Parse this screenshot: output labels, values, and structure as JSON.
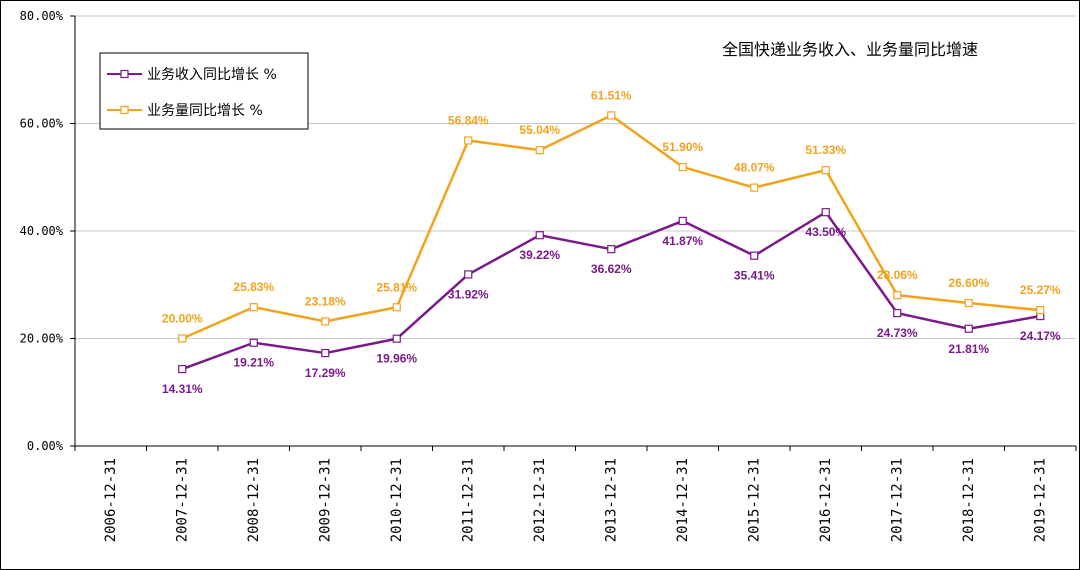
{
  "chart_data": {
    "type": "line",
    "title": "全国快递业务收入、业务量同比增速",
    "categories": [
      "2006-12-31",
      "2007-12-31",
      "2008-12-31",
      "2009-12-31",
      "2010-12-31",
      "2011-12-31",
      "2012-12-31",
      "2013-12-31",
      "2014-12-31",
      "2015-12-31",
      "2016-12-31",
      "2017-12-31",
      "2018-12-31",
      "2019-12-31"
    ],
    "ylim": [
      0,
      80
    ],
    "yticks": [
      0,
      20,
      40,
      60,
      80
    ],
    "ytick_labels": [
      "0.00%",
      "20.00%",
      "40.00%",
      "60.00%",
      "80.00%"
    ],
    "grid": true,
    "legend_position": "top-left",
    "series": [
      {
        "name": "业务收入同比增长 %",
        "color": "#7a1a8a",
        "values": [
          null,
          14.31,
          19.21,
          17.29,
          19.96,
          31.92,
          39.22,
          36.62,
          41.87,
          35.41,
          43.5,
          24.73,
          21.81,
          24.17
        ],
        "labels": [
          null,
          "14.31%",
          "19.21%",
          "17.29%",
          "19.96%",
          "31.92%",
          "39.22%",
          "36.62%",
          "41.87%",
          "35.41%",
          "43.50%",
          "24.73%",
          "21.81%",
          "24.17%"
        ],
        "label_position": "below"
      },
      {
        "name": "业务量同比增长 %",
        "color": "#f2a31c",
        "values": [
          null,
          20.0,
          25.83,
          23.18,
          25.81,
          56.84,
          55.04,
          61.51,
          51.9,
          48.07,
          51.33,
          28.06,
          26.6,
          25.27
        ],
        "labels": [
          null,
          "20.00%",
          "25.83%",
          "23.18%",
          "25.81%",
          "56.84%",
          "55.04%",
          "61.51%",
          "51.90%",
          "48.07%",
          "51.33%",
          "28.06%",
          "26.60%",
          "25.27%"
        ],
        "label_position": "above"
      }
    ]
  }
}
